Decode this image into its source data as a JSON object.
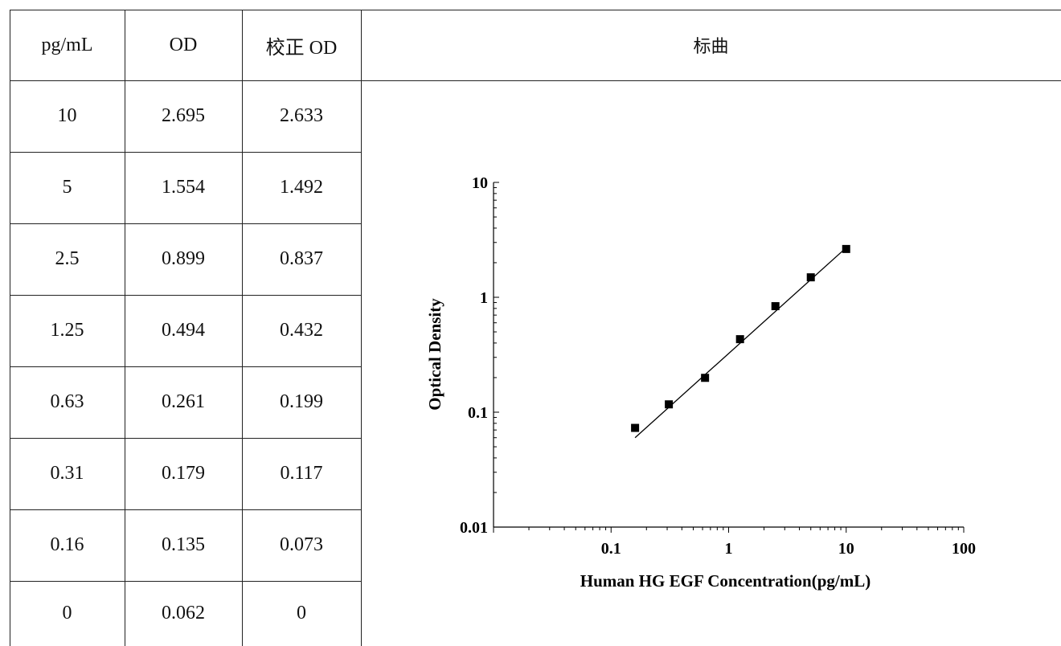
{
  "table": {
    "headers": [
      "pg/mL",
      "OD",
      "校正 OD"
    ],
    "rows": [
      [
        "10",
        "2.695",
        "2.633"
      ],
      [
        "5",
        "1.554",
        "1.492"
      ],
      [
        "2.5",
        "0.899",
        "0.837"
      ],
      [
        "1.25",
        "0.494",
        "0.432"
      ],
      [
        "0.63",
        "0.261",
        "0.199"
      ],
      [
        "0.31",
        "0.179",
        "0.117"
      ],
      [
        "0.16",
        "0.135",
        "0.073"
      ],
      [
        "0",
        "0.062",
        "0"
      ]
    ]
  },
  "chart_header": "标曲",
  "chart_data": {
    "type": "scatter",
    "title": "",
    "xlabel": "Human HG EGF Concentration(pg/mL)",
    "ylabel": "Optical Density",
    "xscale": "log",
    "yscale": "log",
    "xlim": [
      0.01,
      100
    ],
    "ylim": [
      0.01,
      10
    ],
    "x_ticks": [
      {
        "value": 0.1,
        "label": "0.1"
      },
      {
        "value": 1,
        "label": "1"
      },
      {
        "value": 10,
        "label": "10"
      },
      {
        "value": 100,
        "label": "100"
      }
    ],
    "y_ticks": [
      {
        "value": 0.01,
        "label": "0.01"
      },
      {
        "value": 0.1,
        "label": "0.1"
      },
      {
        "value": 1,
        "label": "1"
      },
      {
        "value": 10,
        "label": "10"
      }
    ],
    "grid": false,
    "series": [
      {
        "marker": "square",
        "x": [
          0.16,
          0.31,
          0.63,
          1.25,
          2.5,
          5,
          10
        ],
        "y": [
          0.073,
          0.117,
          0.199,
          0.432,
          0.837,
          1.492,
          2.633
        ]
      }
    ],
    "fit_line": {
      "x": [
        0.16,
        10
      ],
      "y": [
        0.06,
        2.7
      ]
    }
  }
}
